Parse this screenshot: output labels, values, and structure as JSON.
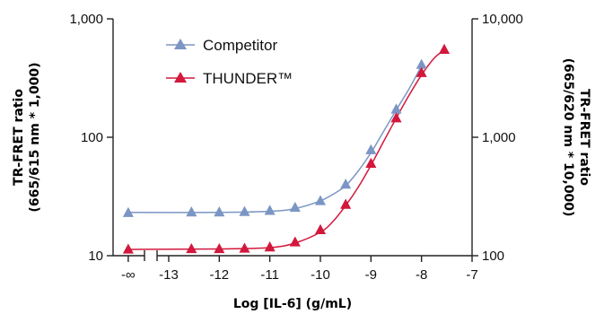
{
  "chart_data": {
    "type": "scatter",
    "xlabel": "Log [IL-6] (g/mL)",
    "ylabel_left": [
      "TR-FRET ratio",
      "(665/615 nm * 1,000)"
    ],
    "ylabel_right": [
      "TR-FRET ratio",
      "(665/620 nm * 10,000)"
    ],
    "x_ticks": [
      "-∞",
      "-13",
      "-12",
      "-11",
      "-10",
      "-9",
      "-8",
      "-7"
    ],
    "x_tick_values": [
      -13.8,
      -13,
      -12,
      -11,
      -10,
      -9,
      -8,
      -7
    ],
    "xlim": [
      -14.1,
      -7
    ],
    "axis_break_at": -13.45,
    "y_left": {
      "scale": "log",
      "ylim": [
        10,
        1000
      ],
      "ticks": [
        10,
        100,
        1000
      ],
      "tick_labels": [
        "10",
        "100",
        "1,000"
      ]
    },
    "y_right": {
      "scale": "log",
      "ylim": [
        100,
        10000
      ],
      "ticks": [
        100,
        1000,
        10000
      ],
      "tick_labels": [
        "100",
        "1,000",
        "10,000"
      ]
    },
    "legend_position": "top-left",
    "series": [
      {
        "name": "Competitor",
        "color": "#7b96c4",
        "marker": "triangle",
        "axis": "left",
        "x": [
          -13.8,
          -12.55,
          -12.0,
          -11.5,
          -11.0,
          -10.5,
          -10.0,
          -9.5,
          -9.0,
          -8.5,
          -8.0
        ],
        "y": [
          23,
          23.3,
          23.3,
          23.5,
          24,
          25.5,
          29,
          40,
          78,
          172,
          410
        ],
        "fit": [
          [
            -13.8,
            23.2
          ],
          [
            -12.0,
            23.2
          ],
          [
            -11.0,
            23.7
          ],
          [
            -10.5,
            25
          ],
          [
            -10.0,
            29
          ],
          [
            -9.75,
            33
          ],
          [
            -9.5,
            39
          ],
          [
            -9.25,
            52
          ],
          [
            -9.0,
            74
          ],
          [
            -8.75,
            112
          ],
          [
            -8.5,
            170
          ],
          [
            -8.25,
            255
          ],
          [
            -8.0,
            400
          ]
        ]
      },
      {
        "name": "THUNDER™",
        "color": "#d2183c",
        "marker": "triangle",
        "axis": "right",
        "x": [
          -13.8,
          -12.55,
          -12.0,
          -11.5,
          -11.0,
          -10.5,
          -10.0,
          -9.5,
          -9.0,
          -8.5,
          -8.0,
          -7.55
        ],
        "y": [
          113,
          114,
          114,
          115,
          118,
          130,
          165,
          270,
          600,
          1450,
          3500,
          5500
        ],
        "fit": [
          [
            -13.8,
            113
          ],
          [
            -12.0,
            114
          ],
          [
            -11.0,
            117
          ],
          [
            -10.5,
            128
          ],
          [
            -10.0,
            158
          ],
          [
            -9.75,
            195
          ],
          [
            -9.5,
            265
          ],
          [
            -9.25,
            380
          ],
          [
            -9.0,
            580
          ],
          [
            -8.75,
            920
          ],
          [
            -8.5,
            1450
          ],
          [
            -8.25,
            2250
          ],
          [
            -8.0,
            3350
          ],
          [
            -7.75,
            4650
          ],
          [
            -7.55,
            5450
          ]
        ]
      }
    ]
  }
}
